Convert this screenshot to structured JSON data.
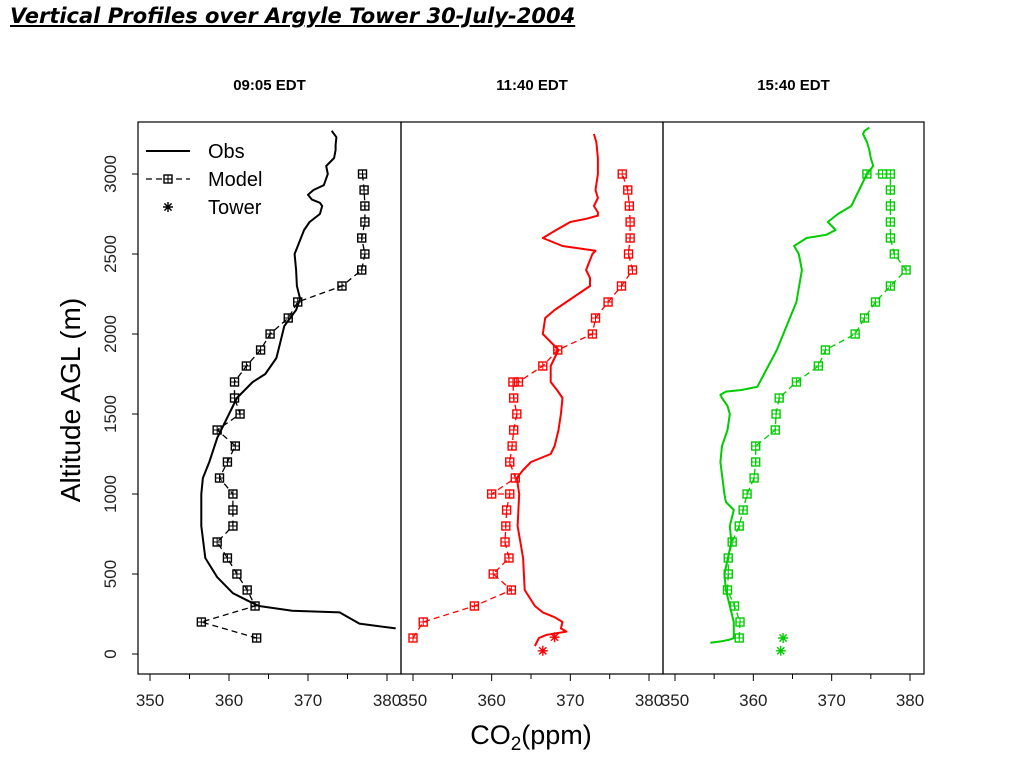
{
  "title": "Vertical Profiles over Argyle Tower 30-July-2004",
  "colors": {
    "panel1": "#000000",
    "panel2": "#ff0000",
    "panel3": "#00cc00"
  },
  "chart_data": {
    "type": "line",
    "xlabel": "CO2(ppm)",
    "ylabel": "Altitude AGL (m)",
    "xlim": [
      350,
      380
    ],
    "ylim": [
      0,
      3000
    ],
    "xticks": [
      "350",
      "360",
      "370",
      "380"
    ],
    "yticks": [
      "0",
      "500",
      "1000",
      "1500",
      "2000",
      "2500",
      "3000"
    ],
    "legend": {
      "placement": "top-left",
      "entries": [
        "Obs",
        "Model",
        "Tower"
      ]
    },
    "panels": [
      {
        "title": "09:05 EDT",
        "color": "#000000",
        "obs": {
          "x": [
            381.1,
            376.5,
            374,
            368,
            363.8,
            362.5,
            360.5,
            358.5,
            357,
            356.5,
            356.5,
            356.7,
            357.5,
            358.5,
            359.5,
            361,
            363,
            364.6,
            366,
            366.5,
            367,
            368.5,
            369,
            368.6,
            368.5,
            368.3,
            369.5,
            370.2,
            371.5,
            371.8,
            371.5,
            370.5,
            370,
            370.7,
            372,
            372.5,
            372.3,
            373.3,
            373.5,
            373.5,
            373.6,
            373
          ],
          "y": [
            160,
            190,
            260,
            270,
            300,
            330,
            380,
            480,
            600,
            800,
            1000,
            1100,
            1200,
            1350,
            1450,
            1600,
            1700,
            1750,
            1850,
            1950,
            2050,
            2150,
            2220,
            2300,
            2400,
            2500,
            2650,
            2700,
            2750,
            2800,
            2820,
            2840,
            2870,
            2900,
            2930,
            3000,
            3050,
            3100,
            3150,
            3180,
            3230,
            3270
          ]
        },
        "model": {
          "x": [
            363.5,
            356.5,
            363.3,
            362.3,
            361,
            359.8,
            358.5,
            360.5,
            360.5,
            360.5,
            358.8,
            359.8,
            360.8,
            358.5,
            361.4,
            360.7,
            360.7,
            362.2,
            364,
            365.2,
            367.5,
            368.7,
            374.3,
            376.8,
            377.2,
            376.8,
            377.2,
            377.2,
            377.1,
            376.9
          ],
          "y": [
            100,
            200,
            300,
            400,
            500,
            600,
            700,
            800,
            900,
            1000,
            1100,
            1200,
            1300,
            1400,
            1500,
            1600,
            1700,
            1800,
            1900,
            2000,
            2100,
            2200,
            2300,
            2400,
            2500,
            2600,
            2700,
            2800,
            2900,
            3000
          ]
        },
        "tower": {
          "x": [],
          "y": []
        }
      },
      {
        "title": "11:40 EDT",
        "color": "#ff0000",
        "obs": {
          "x": [
            365.5,
            366,
            367,
            369.5,
            368.8,
            369,
            368,
            366.5,
            365.5,
            364.2,
            364,
            363.3,
            363.5,
            363.2,
            364,
            365,
            367.5,
            368,
            368.5,
            368.8,
            369,
            368.3,
            367.5,
            367.5,
            368.5,
            367.5,
            366.5,
            366.8,
            368,
            369.5,
            371,
            372.5,
            372.5,
            372,
            372.8,
            373.2,
            369,
            366.5,
            368.2,
            370,
            372,
            373.5,
            373.5,
            373,
            373.5,
            373.2,
            373.5,
            373.5,
            373.3,
            373
          ],
          "y": [
            50,
            100,
            120,
            140,
            160,
            200,
            230,
            260,
            300,
            400,
            600,
            800,
            1000,
            1100,
            1150,
            1200,
            1250,
            1300,
            1400,
            1500,
            1600,
            1650,
            1700,
            1800,
            1900,
            1950,
            2000,
            2100,
            2150,
            2200,
            2250,
            2300,
            2350,
            2400,
            2500,
            2520,
            2550,
            2600,
            2650,
            2700,
            2720,
            2740,
            2760,
            2800,
            2850,
            2900,
            3000,
            3100,
            3200,
            3250
          ]
        },
        "model": {
          "x": [
            350,
            351.3,
            357.8,
            362.5,
            360.2,
            362.2,
            361.7,
            361.8,
            361.9,
            362.3,
            360,
            363,
            362.3,
            362.6,
            362.8,
            363.2,
            362.8,
            362.7,
            363.4,
            366.5,
            368.4,
            372.8,
            373.2,
            374.8,
            376.5,
            377.9,
            377.4,
            377.6,
            377.6,
            377.5,
            377.3,
            376.6
          ],
          "y": [
            100,
            200,
            300,
            400,
            500,
            600,
            700,
            800,
            900,
            1000,
            1000,
            1100,
            1200,
            1300,
            1400,
            1500,
            1600,
            1700,
            1700,
            1800,
            1900,
            2000,
            2100,
            2200,
            2300,
            2400,
            2500,
            2600,
            2700,
            2800,
            2900,
            3000
          ]
        },
        "tower": {
          "x": [
            366.5,
            368
          ],
          "y": [
            20,
            105
          ]
        }
      },
      {
        "title": "15:40 EDT",
        "color": "#00cc00",
        "obs": {
          "x": [
            354.5,
            356,
            357,
            357.5,
            357.5,
            357,
            356.5,
            356.3,
            357.2,
            357,
            357.5,
            356.5,
            356.3,
            355.8,
            356,
            356.7,
            357,
            356.7,
            356,
            355.8,
            356.5,
            358.5,
            359.5,
            360.5,
            363,
            365.5,
            366.2,
            365.8,
            365.2,
            366.8,
            369.3,
            370.5,
            369.5,
            370.8,
            372.5,
            373.5,
            374.5,
            375.3,
            375,
            374.8,
            374.5,
            374,
            374.2,
            374.8
          ],
          "y": [
            70,
            80,
            90,
            100,
            200,
            300,
            400,
            500,
            700,
            800,
            900,
            950,
            1000,
            1200,
            1300,
            1400,
            1500,
            1550,
            1600,
            1620,
            1640,
            1650,
            1660,
            1670,
            1900,
            2200,
            2400,
            2500,
            2550,
            2600,
            2620,
            2650,
            2700,
            2750,
            2800,
            2900,
            3000,
            3050,
            3100,
            3150,
            3200,
            3250,
            3270,
            3290
          ]
        },
        "model": {
          "x": [
            358.2,
            358.3,
            357.6,
            356.7,
            356.8,
            356.8,
            357.3,
            358.2,
            358.7,
            359.2,
            360.1,
            360.3,
            360.3,
            362.8,
            362.9,
            363.3,
            365.5,
            368.3,
            369.2,
            373,
            374.2,
            375.6,
            377.5,
            379.5,
            378,
            377.5,
            377.5,
            377.5,
            377.5,
            377.5,
            376.5,
            374.5
          ],
          "y": [
            100,
            200,
            300,
            400,
            500,
            600,
            700,
            800,
            900,
            1000,
            1100,
            1200,
            1300,
            1400,
            1500,
            1600,
            1700,
            1800,
            1900,
            2000,
            2100,
            2200,
            2300,
            2400,
            2500,
            2600,
            2700,
            2800,
            2900,
            3000,
            3000,
            3000
          ]
        },
        "tower": {
          "x": [
            363.5,
            363.8
          ],
          "y": [
            20,
            100
          ]
        }
      }
    ]
  }
}
